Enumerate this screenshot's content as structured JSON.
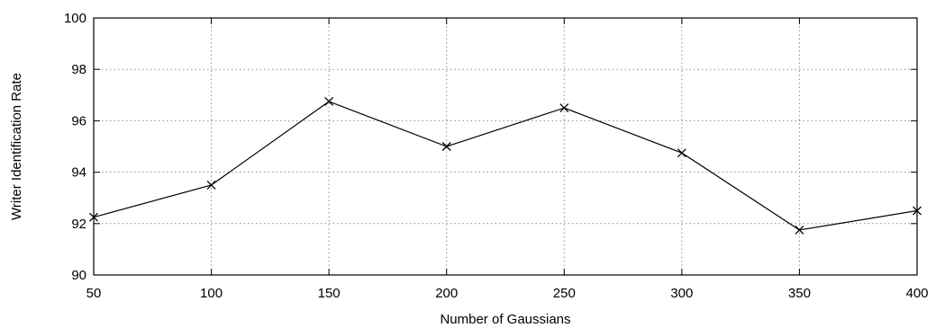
{
  "chart_data": {
    "type": "line",
    "title": "",
    "xlabel": "Number of Gaussians",
    "ylabel": "Writer Identification Rate",
    "xlim": [
      50,
      400
    ],
    "ylim": [
      90,
      100
    ],
    "x_ticks": [
      50,
      100,
      150,
      200,
      250,
      300,
      350,
      400
    ],
    "y_ticks": [
      90,
      92,
      94,
      96,
      98,
      100
    ],
    "grid": true,
    "legend": "none",
    "marker": "x",
    "line_color": "#000000",
    "series": [
      {
        "x": [
          50,
          100,
          150,
          200,
          250,
          300,
          350,
          400
        ],
        "values": [
          92.25,
          93.5,
          96.75,
          95.0,
          96.5,
          94.75,
          91.75,
          92.5
        ]
      }
    ]
  }
}
